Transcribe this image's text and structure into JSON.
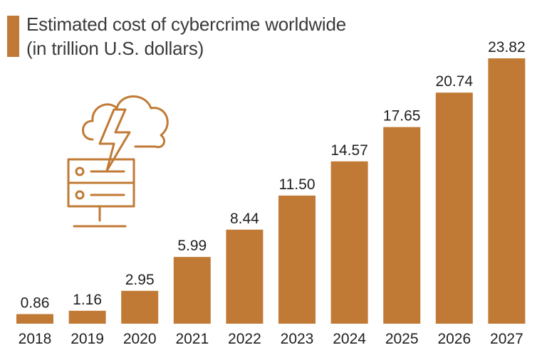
{
  "colors": {
    "bar": "#c07a35",
    "icon_stroke": "#c07a35",
    "text": "#1f1f1f",
    "legend_text": "#3a3a3a"
  },
  "legend": {
    "line1": "Estimated cost of cybercrime worldwide",
    "line2": "(in trillion U.S. dollars)"
  },
  "icon": {
    "name": "cloud-server-lightning-icon"
  },
  "chart_data": {
    "type": "bar",
    "title": "Estimated cost of cybercrime worldwide (in trillion U.S. dollars)",
    "categories": [
      "2018",
      "2019",
      "2020",
      "2021",
      "2022",
      "2023",
      "2024",
      "2025",
      "2026",
      "2027"
    ],
    "values": [
      0.86,
      1.16,
      2.95,
      5.99,
      8.44,
      11.5,
      14.57,
      17.65,
      20.74,
      23.82
    ],
    "value_labels": [
      "0.86",
      "1.16",
      "2.95",
      "5.99",
      "8.44",
      "11.50",
      "14.57",
      "17.65",
      "20.74",
      "23.82"
    ],
    "series_name": "Estimated cost of cybercrime worldwide",
    "xlabel": "",
    "ylabel": "",
    "ylim": [
      0,
      23.82
    ],
    "grid": false,
    "legend_position": "top-left"
  }
}
